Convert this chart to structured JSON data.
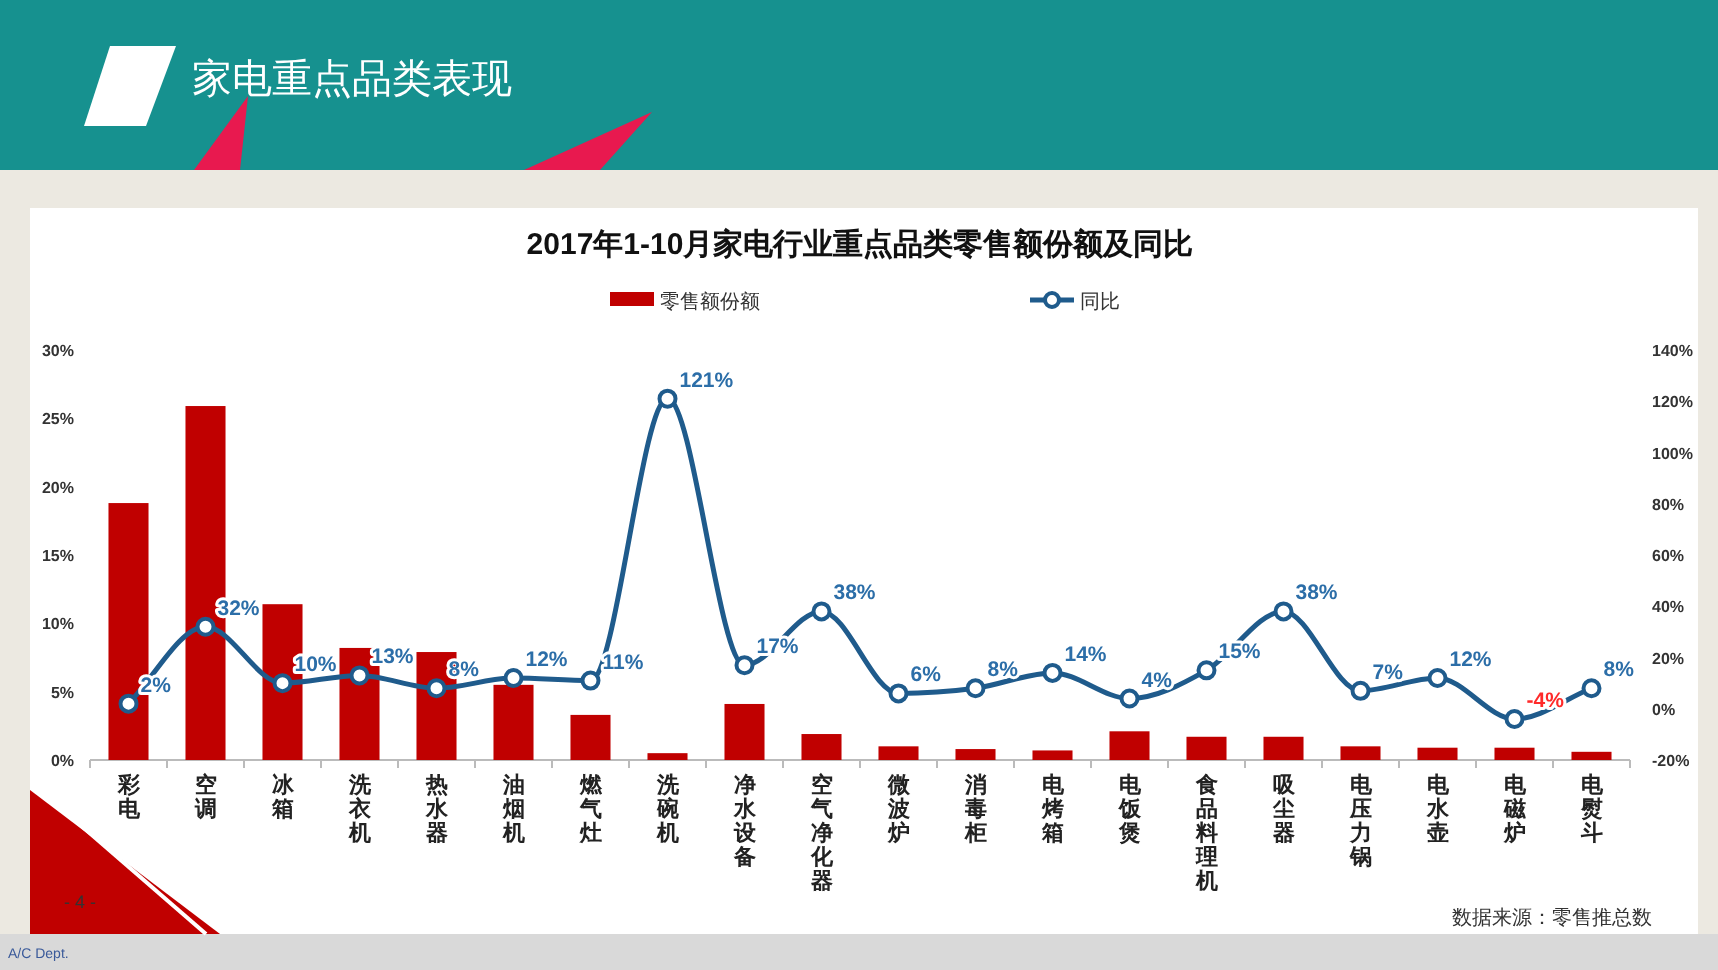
{
  "chart_data": {
    "type": "bar",
    "title": "2017年1-10月家电行业重点品类零售额份额及同比",
    "categories": [
      "彩电",
      "空调",
      "冰箱",
      "洗衣机",
      "热水器",
      "油烟机",
      "燃气灶",
      "洗碗机",
      "净水设备",
      "空气净化器",
      "微波炉",
      "消毒柜",
      "电烤箱",
      "电饭煲",
      "食品料理机",
      "吸尘器",
      "电压力锅",
      "电水壶",
      "电磁炉",
      "电熨斗"
    ],
    "series": [
      {
        "name": "零售额份额",
        "color": "#c00000",
        "values": [
          18.8,
          25.9,
          11.4,
          8.2,
          7.9,
          5.5,
          3.3,
          0.5,
          4.1,
          1.9,
          1.0,
          0.8,
          0.7,
          2.1,
          1.7,
          1.7,
          1.0,
          0.9,
          0.9,
          0.6
        ]
      },
      {
        "name": "同比",
        "type": "line",
        "axis": "y2",
        "color": "#1f5b8c",
        "values": [
          2,
          32,
          10,
          13,
          8,
          12,
          11,
          121,
          17,
          38,
          6,
          8,
          14,
          4,
          15,
          38,
          7,
          12,
          -4,
          8
        ],
        "value_labels": [
          "2%",
          "32%",
          "10%",
          "13%",
          "8%",
          "12%",
          "11%",
          "121%",
          "17%",
          "38%",
          "6%",
          "8%",
          "14%",
          "4%",
          "15%",
          "38%",
          "7%",
          "12%",
          "-4%",
          "8%"
        ]
      }
    ],
    "ylim": [
      0,
      30
    ],
    "yticks": [
      {
        "value": 0,
        "label": "0%"
      },
      {
        "value": 5,
        "label": "5%"
      },
      {
        "value": 10,
        "label": "10%"
      },
      {
        "value": 15,
        "label": "15%"
      },
      {
        "value": 20,
        "label": "20%"
      },
      {
        "value": 25,
        "label": "25%"
      },
      {
        "value": 30,
        "label": "30%"
      }
    ],
    "y2lim": [
      -20,
      140
    ],
    "y2ticks": [
      {
        "value": -20,
        "label": "-20%"
      },
      {
        "value": 0,
        "label": "0%"
      },
      {
        "value": 20,
        "label": "20%"
      },
      {
        "value": 40,
        "label": "40%"
      },
      {
        "value": 60,
        "label": "60%"
      },
      {
        "value": 80,
        "label": "80%"
      },
      {
        "value": 100,
        "label": "100%"
      },
      {
        "value": 120,
        "label": "120%"
      },
      {
        "value": 140,
        "label": "140%"
      }
    ],
    "marker": "circle",
    "legend": "top",
    "grid": false,
    "annotations": [
      "家电重点品类表现",
      "- 4 -",
      "数据来源：零售推总数",
      "A/C Dept."
    ]
  }
}
